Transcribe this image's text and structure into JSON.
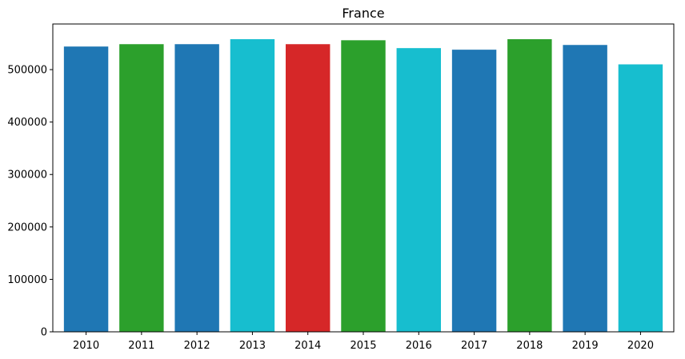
{
  "chart_data": {
    "type": "bar",
    "title": "France",
    "xlabel": "",
    "ylabel": "",
    "categories": [
      "2010",
      "2011",
      "2012",
      "2013",
      "2014",
      "2015",
      "2016",
      "2017",
      "2018",
      "2019",
      "2020"
    ],
    "values": [
      544000,
      548500,
      548500,
      558000,
      548500,
      556000,
      541000,
      538000,
      558000,
      547000,
      510000
    ],
    "colors": [
      "#1f77b4",
      "#2ca02c",
      "#1f77b4",
      "#17becf",
      "#d62728",
      "#2ca02c",
      "#17becf",
      "#1f77b4",
      "#2ca02c",
      "#1f77b4",
      "#17becf"
    ],
    "ylim": [
      0,
      587000
    ],
    "yticks": [
      0,
      100000,
      200000,
      300000,
      400000,
      500000
    ],
    "ytick_labels": [
      "0",
      "100000",
      "200000",
      "300000",
      "400000",
      "500000"
    ],
    "grid": false,
    "legend": "none"
  }
}
